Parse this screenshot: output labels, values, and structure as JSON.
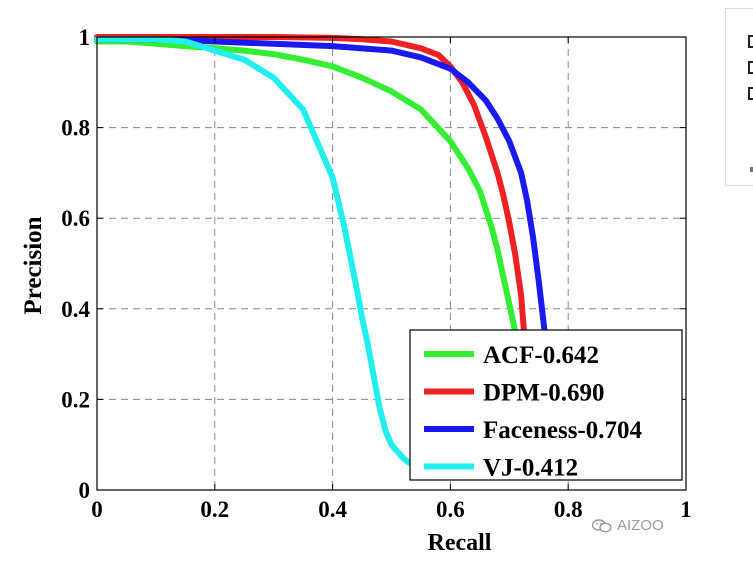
{
  "chart_data": {
    "type": "line",
    "xlabel": "Recall",
    "ylabel": "Precision",
    "xlim": [
      0,
      1
    ],
    "ylim": [
      0,
      1
    ],
    "x_ticks": [
      "0",
      "0.2",
      "0.4",
      "0.6",
      "0.8",
      "1"
    ],
    "y_ticks": [
      "0",
      "0.2",
      "0.4",
      "0.6",
      "0.8",
      "1"
    ],
    "grid": true,
    "legend_position": "bottom-right",
    "series": [
      {
        "name": "ACF-0.642",
        "color": "#33ee33",
        "points": [
          [
            0,
            0.99
          ],
          [
            0.05,
            0.99
          ],
          [
            0.1,
            0.985
          ],
          [
            0.15,
            0.98
          ],
          [
            0.2,
            0.975
          ],
          [
            0.25,
            0.97
          ],
          [
            0.3,
            0.962
          ],
          [
            0.35,
            0.95
          ],
          [
            0.4,
            0.935
          ],
          [
            0.45,
            0.91
          ],
          [
            0.5,
            0.88
          ],
          [
            0.55,
            0.84
          ],
          [
            0.6,
            0.77
          ],
          [
            0.63,
            0.71
          ],
          [
            0.65,
            0.66
          ],
          [
            0.67,
            0.58
          ],
          [
            0.68,
            0.53
          ],
          [
            0.69,
            0.47
          ],
          [
            0.7,
            0.41
          ],
          [
            0.71,
            0.35
          ]
        ]
      },
      {
        "name": "DPM-0.690",
        "color": "#ee2222",
        "points": [
          [
            0,
            1.0
          ],
          [
            0.1,
            1.0
          ],
          [
            0.2,
            1.0
          ],
          [
            0.3,
            1.0
          ],
          [
            0.4,
            0.998
          ],
          [
            0.45,
            0.995
          ],
          [
            0.5,
            0.99
          ],
          [
            0.55,
            0.975
          ],
          [
            0.58,
            0.96
          ],
          [
            0.6,
            0.935
          ],
          [
            0.62,
            0.9
          ],
          [
            0.64,
            0.85
          ],
          [
            0.66,
            0.78
          ],
          [
            0.68,
            0.7
          ],
          [
            0.69,
            0.65
          ],
          [
            0.7,
            0.59
          ],
          [
            0.71,
            0.52
          ],
          [
            0.72,
            0.43
          ],
          [
            0.725,
            0.35
          ]
        ]
      },
      {
        "name": "Faceness-0.704",
        "color": "#1a1aee",
        "points": [
          [
            0,
            0.995
          ],
          [
            0.1,
            0.995
          ],
          [
            0.15,
            0.993
          ],
          [
            0.2,
            0.99
          ],
          [
            0.3,
            0.985
          ],
          [
            0.4,
            0.98
          ],
          [
            0.5,
            0.97
          ],
          [
            0.55,
            0.955
          ],
          [
            0.6,
            0.93
          ],
          [
            0.63,
            0.9
          ],
          [
            0.66,
            0.86
          ],
          [
            0.68,
            0.82
          ],
          [
            0.7,
            0.77
          ],
          [
            0.72,
            0.7
          ],
          [
            0.73,
            0.64
          ],
          [
            0.74,
            0.56
          ],
          [
            0.75,
            0.46
          ],
          [
            0.76,
            0.35
          ]
        ]
      },
      {
        "name": "VJ-0.412",
        "color": "#22eeee",
        "points": [
          [
            0,
            0.995
          ],
          [
            0.05,
            0.995
          ],
          [
            0.1,
            0.995
          ],
          [
            0.15,
            0.99
          ],
          [
            0.2,
            0.97
          ],
          [
            0.25,
            0.95
          ],
          [
            0.3,
            0.91
          ],
          [
            0.35,
            0.84
          ],
          [
            0.38,
            0.75
          ],
          [
            0.4,
            0.69
          ],
          [
            0.42,
            0.58
          ],
          [
            0.44,
            0.45
          ],
          [
            0.45,
            0.38
          ],
          [
            0.46,
            0.32
          ],
          [
            0.47,
            0.25
          ],
          [
            0.48,
            0.18
          ],
          [
            0.49,
            0.13
          ],
          [
            0.5,
            0.1
          ],
          [
            0.52,
            0.07
          ],
          [
            0.53,
            0.06
          ]
        ]
      }
    ]
  },
  "watermark": {
    "text": "AIZOO",
    "icon": "wechat-icon"
  }
}
